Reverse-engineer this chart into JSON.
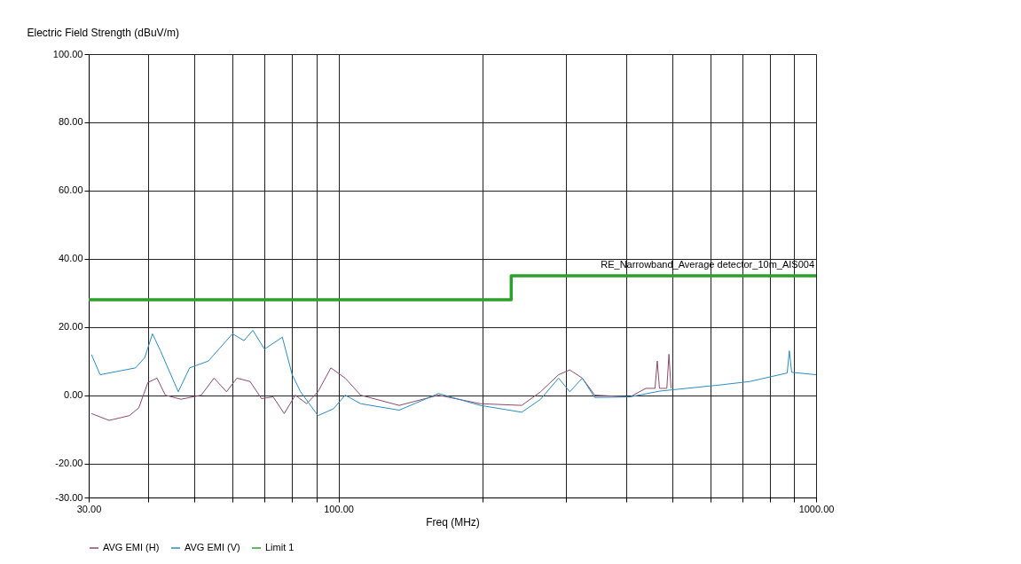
{
  "chart_data": {
    "type": "line",
    "xlabel": "Freq (MHz)",
    "ylabel": "Electric Field Strength (dBuV/m)",
    "log": "x",
    "grid": true,
    "legend": "bottom",
    "xlim": [
      30,
      1000
    ],
    "xticks": [
      {
        "value": 30,
        "label": "30.00"
      },
      {
        "value": 40,
        "label": null
      },
      {
        "value": 50,
        "label": null
      },
      {
        "value": 60,
        "label": null
      },
      {
        "value": 70,
        "label": null
      },
      {
        "value": 80,
        "label": null
      },
      {
        "value": 90,
        "label": null
      },
      {
        "value": 100,
        "label": "100.00"
      },
      {
        "value": 200,
        "label": null
      },
      {
        "value": 300,
        "label": null
      },
      {
        "value": 400,
        "label": null
      },
      {
        "value": 500,
        "label": null
      },
      {
        "value": 600,
        "label": null
      },
      {
        "value": 700,
        "label": null
      },
      {
        "value": 800,
        "label": null
      },
      {
        "value": 900,
        "label": null
      },
      {
        "value": 1000,
        "label": "1000.00"
      }
    ],
    "ylim": [
      -30,
      100
    ],
    "yticks": [
      {
        "value": -30,
        "label": "-30.00"
      },
      {
        "value": -20,
        "label": "-20.00"
      },
      {
        "value": 0,
        "label": "0.00"
      },
      {
        "value": 20,
        "label": "20.00"
      },
      {
        "value": 40,
        "label": "40.00"
      },
      {
        "value": 60,
        "label": "60.00"
      },
      {
        "value": 80,
        "label": "80.00"
      },
      {
        "value": 100,
        "label": "100.00"
      }
    ],
    "annotations": [
      {
        "text": "RE_Narrowband_Average detector_10m_AIS004",
        "x": 1000,
        "y": 35
      }
    ],
    "series": [
      {
        "name": "AVG EMI (H)",
        "color": "#8e4a6a",
        "x": [
          30.4,
          33.1,
          36.5,
          38.2,
          39.9,
          41.7,
          43.4,
          46.8,
          51.6,
          54.9,
          58.3,
          61.3,
          65.3,
          69.0,
          73.0,
          77.0,
          81.2,
          85.8,
          90.6,
          96.4,
          103.3,
          111.3,
          134,
          162,
          198,
          242,
          265,
          289,
          305,
          324,
          344,
          408,
          440,
          460,
          465,
          470,
          487,
          492,
          497
        ],
        "values": [
          -5.4,
          -7.4,
          -6,
          -3.7,
          3.7,
          5,
          0,
          -1.2,
          0,
          5,
          1,
          5,
          4,
          -1,
          -0.5,
          -5.4,
          0,
          -2.5,
          1,
          8,
          5,
          0,
          -3,
          0,
          -2.5,
          -3,
          1,
          6,
          7.4,
          5,
          0,
          -0.5,
          2,
          2,
          10,
          2,
          2,
          12,
          2
        ]
      },
      {
        "name": "AVG EMI (V)",
        "color": "#2b8cc4",
        "x": [
          30.4,
          31.7,
          37.6,
          39.3,
          40.8,
          42.4,
          46.2,
          48.8,
          53.4,
          60,
          63.4,
          66.2,
          70,
          76.3,
          80,
          83.3,
          90.6,
          97.6,
          103.3,
          111.3,
          134,
          162,
          198,
          242,
          265,
          289,
          305,
          324,
          344,
          408,
          471,
          630,
          726,
          870,
          879,
          889,
          1000
        ],
        "values": [
          11.9,
          6,
          8,
          11,
          18,
          13,
          1,
          8,
          10,
          18,
          16,
          19,
          13.5,
          17,
          6,
          1,
          -6,
          -4,
          0,
          -2.5,
          -4.4,
          0.5,
          -3,
          -5,
          -1.2,
          5,
          1,
          5,
          -0.7,
          -0.5,
          1.2,
          3,
          4,
          6.5,
          13,
          6.7,
          6
        ]
      },
      {
        "name": "Limit 1",
        "type": "step",
        "color": "#2ca02c",
        "x": [
          30,
          230,
          1000
        ],
        "values": [
          28,
          35,
          35
        ]
      }
    ]
  }
}
